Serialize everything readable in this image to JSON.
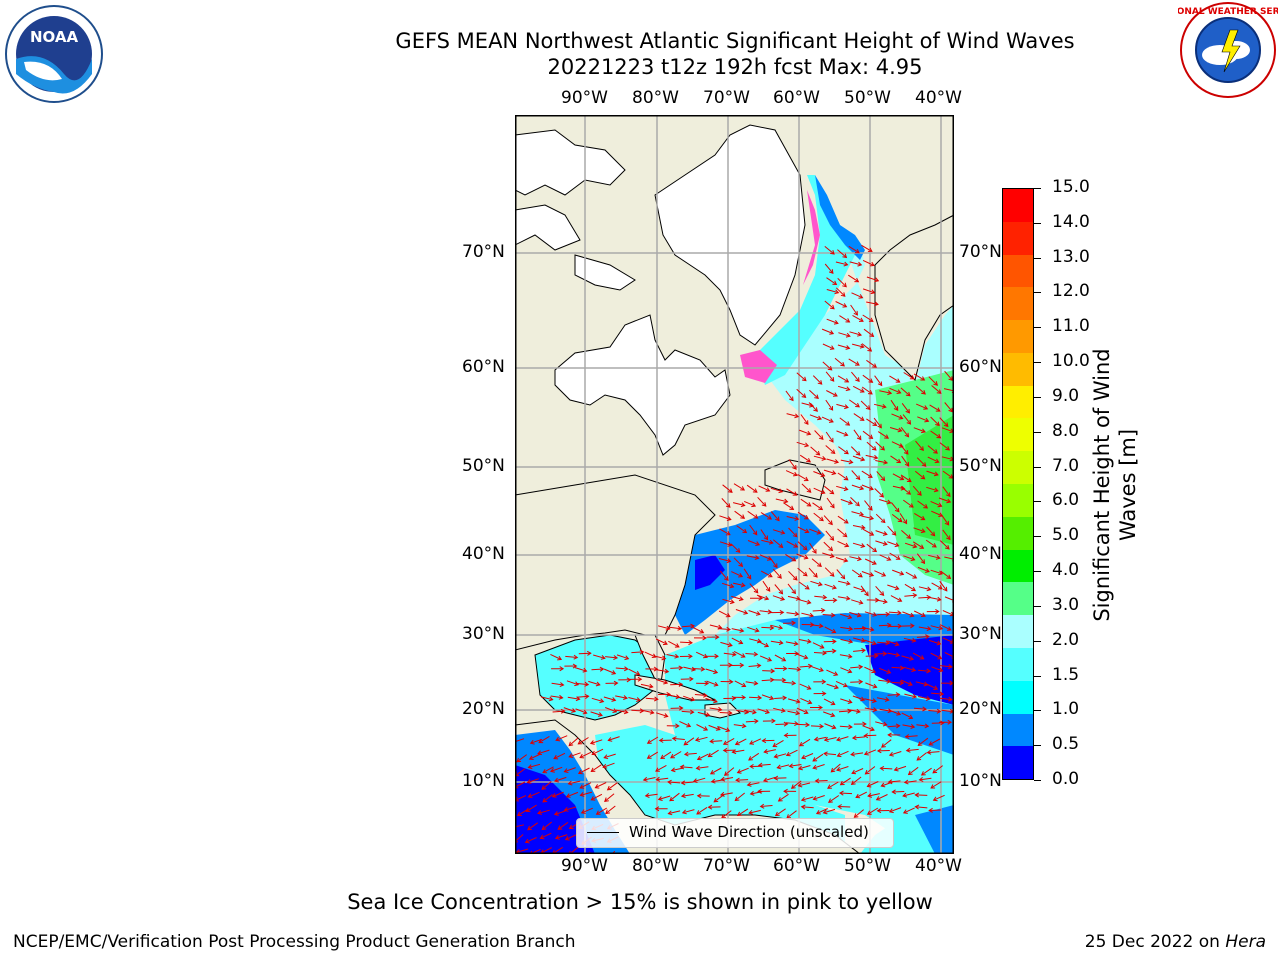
{
  "title_line1": "GEFS MEAN Northwest Atlantic Significant Height of Wind Waves",
  "title_line2": "20221223 t12z 192h fcst   Max: 4.95",
  "lon_ticks": [
    "90°W",
    "80°W",
    "70°W",
    "60°W",
    "50°W",
    "40°W"
  ],
  "lat_ticks": [
    "70°N",
    "60°N",
    "50°N",
    "40°N",
    "30°N",
    "20°N",
    "10°N"
  ],
  "colorbar": {
    "label": "Significant Height of Wind Waves [m]",
    "label_line1": "Significant Height of Wind",
    "label_line2": "Waves [m]",
    "ticks": [
      "15.0",
      "14.0",
      "13.0",
      "12.0",
      "11.0",
      "10.0",
      "9.0",
      "8.0",
      "7.0",
      "6.0",
      "5.0",
      "4.0",
      "3.0",
      "2.0",
      "1.5",
      "1.0",
      "0.5",
      "0.0"
    ],
    "colors_top_to_bottom": [
      "#ff0000",
      "#ff2200",
      "#ff5500",
      "#ff7700",
      "#ff9900",
      "#ffbb00",
      "#ffee00",
      "#eeff00",
      "#ccff00",
      "#99ff00",
      "#55ee00",
      "#00ee00",
      "#55ff88",
      "#aaffff",
      "#55ffff",
      "#00ffff",
      "#0088ff",
      "#0000ff"
    ]
  },
  "legend": {
    "label": "Wind Wave Direction (unscaled)"
  },
  "sea_ice_note": "Sea Ice Concentration > 15% is shown in pink to yellow",
  "footer_left": "NCEP/EMC/Verification Post Processing Product Generation Branch",
  "footer_date": "25 Dec 2022 on ",
  "footer_machine": "Hera",
  "logos": {
    "left": "NOAA",
    "right": "NATIONAL WEATHER SERVICE"
  },
  "colors": {
    "land": "#efeedc",
    "ocean_low": "#0000ff",
    "ocean_mid": "#0088ff",
    "ocean_cyan": "#55ffff",
    "arrow": "#dd0000"
  }
}
